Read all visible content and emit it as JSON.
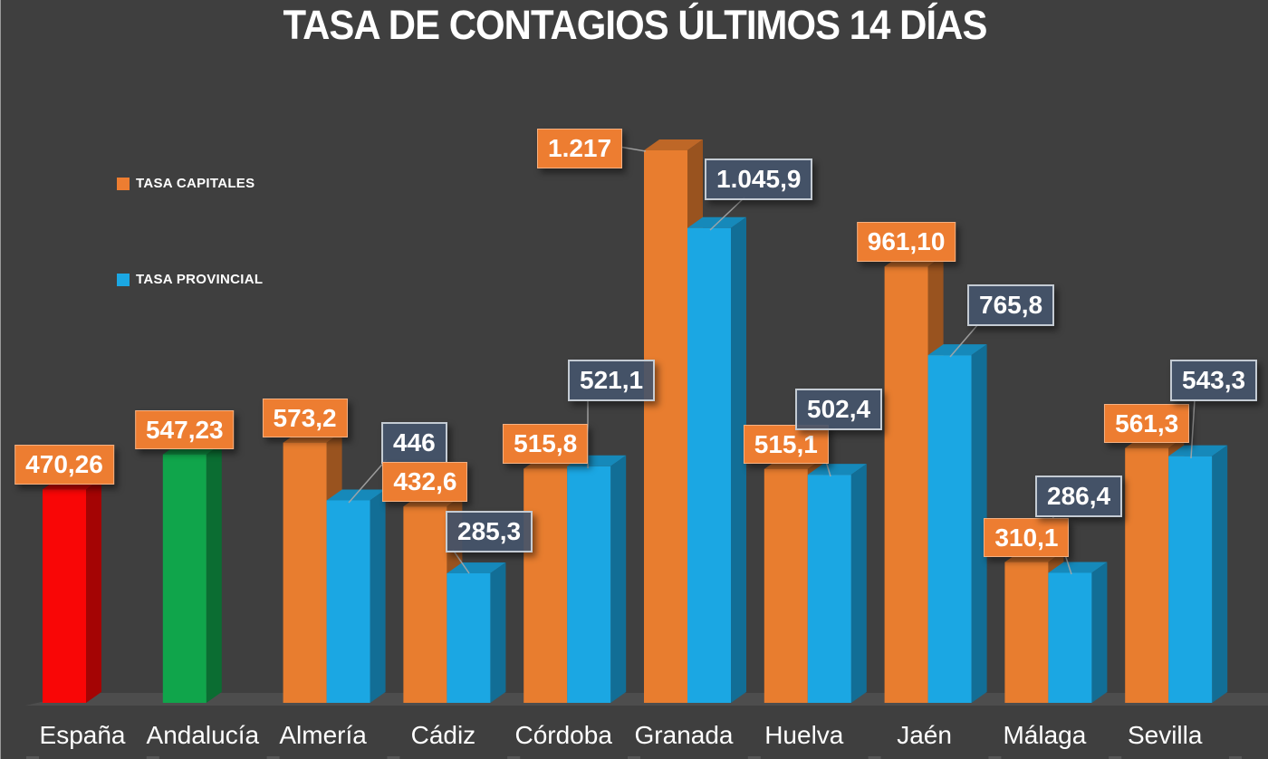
{
  "legend": {
    "capitales": {
      "label": "TASA CAPITALES",
      "color": "#ED7D31"
    },
    "provincial": {
      "label": "TASA PROVINCIAL",
      "color": "#1BA7E3"
    }
  },
  "chart_data": {
    "type": "bar",
    "projection": "3d",
    "title": "TASA DE CONTAGIOS ÚLTIMOS 14 DÍAS",
    "categories": [
      "España",
      "Andalucía",
      "Almería",
      "Cádiz",
      "Córdoba",
      "Granada",
      "Huelva",
      "Jaén",
      "Málaga",
      "Sevilla"
    ],
    "series": [
      {
        "name": "TASA CAPITALES",
        "color": "#E87D2F",
        "point_colors": [
          "#F90606",
          "#10A54B",
          "#E87D2F",
          "#E87D2F",
          "#E87D2F",
          "#E87D2F",
          "#E87D2F",
          "#E87D2F",
          "#E87D2F",
          "#E87D2F"
        ],
        "values": [
          470.26,
          547.23,
          573.2,
          432.6,
          515.8,
          1217,
          515.1,
          961.1,
          310.1,
          561.3
        ],
        "value_labels": [
          "470,26",
          "547,23",
          "573,2",
          "432,6",
          "515,8",
          "1.217",
          "515,1",
          "961,10",
          "310,1",
          "561,3"
        ]
      },
      {
        "name": "TASA PROVINCIAL",
        "color": "#1BA7E3",
        "values": [
          null,
          null,
          446,
          285.3,
          521.1,
          1045.9,
          502.4,
          765.8,
          286.4,
          543.3
        ],
        "value_labels": [
          null,
          null,
          "446",
          "285,3",
          "521,1",
          "1.045,9",
          "502,4",
          "765,8",
          "286,4",
          "543,3"
        ]
      }
    ],
    "ylim": [
      0,
      1300
    ],
    "grid": false,
    "legend_position": "top-left",
    "background_color": "#3F3F3F",
    "floor_color": "#4D4D4D",
    "label_box_colors": {
      "capitales": "#ED7D31",
      "provincial": "#44546A"
    }
  }
}
